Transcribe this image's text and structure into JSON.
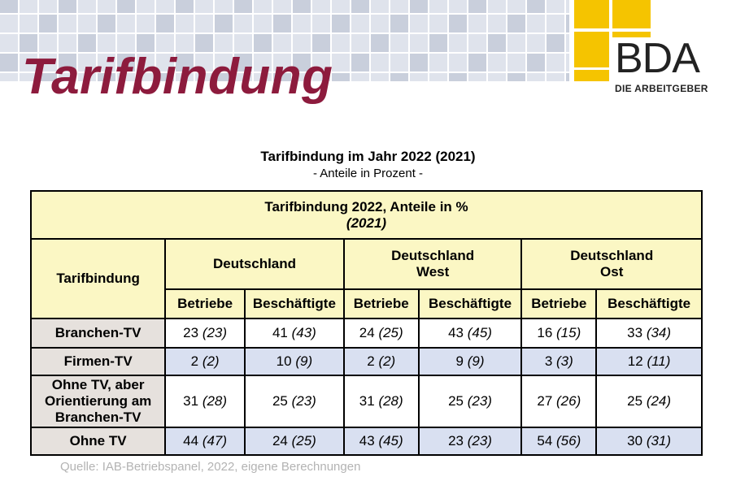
{
  "header": {
    "title": "Tarifbindung",
    "logo_text": "BDA",
    "logo_subtitle": "DIE ARBEITGEBER"
  },
  "heading": {
    "main": "Tarifbindung im Jahr 2022 (2021)",
    "sub": "- Anteile in Prozent -"
  },
  "table": {
    "banner_line1": "Tarifbindung 2022, Anteile in %",
    "banner_line2": "(2021)",
    "row_header": "Tarifbindung",
    "regions": [
      "Deutschland",
      "Deutschland West",
      "Deutschland Ost"
    ],
    "columns": [
      "Betriebe",
      "Beschäftigte",
      "Betriebe",
      "Beschäftigte",
      "Betriebe",
      "Beschäftigte"
    ],
    "rows": [
      {
        "label": "Branchen-TV",
        "cells": [
          [
            "23",
            "(23)"
          ],
          [
            "41",
            "(43)"
          ],
          [
            "24",
            "(25)"
          ],
          [
            "43",
            "(45)"
          ],
          [
            "16",
            "(15)"
          ],
          [
            "33",
            "(34)"
          ]
        ]
      },
      {
        "label": "Firmen-TV",
        "cells": [
          [
            "2",
            "(2)"
          ],
          [
            "10",
            "(9)"
          ],
          [
            "2",
            "(2)"
          ],
          [
            "9",
            "(9)"
          ],
          [
            "3",
            "(3)"
          ],
          [
            "12",
            "(11)"
          ]
        ]
      },
      {
        "label": "Ohne TV, aber Orientierung am Branchen-TV",
        "cells": [
          [
            "31",
            "(28)"
          ],
          [
            "25",
            "(23)"
          ],
          [
            "31",
            "(28)"
          ],
          [
            "25",
            "(23)"
          ],
          [
            "27",
            "(26)"
          ],
          [
            "25",
            "(24)"
          ]
        ]
      },
      {
        "label": "Ohne TV",
        "cells": [
          [
            "44",
            "(47)"
          ],
          [
            "24",
            "(25)"
          ],
          [
            "43",
            "(45)"
          ],
          [
            "23",
            "(23)"
          ],
          [
            "54",
            "(56)"
          ],
          [
            "30",
            "(31)"
          ]
        ]
      }
    ]
  },
  "source": "Quelle: IAB-Betriebspanel, 2022, eigene Berechnungen",
  "colors": {
    "title": "#8d1b3d",
    "logo": "#f5c400",
    "banner_bg": "#fbf7c4",
    "label_bg": "#e6e1dd",
    "alt_row_bg": "#d9e0f1"
  }
}
